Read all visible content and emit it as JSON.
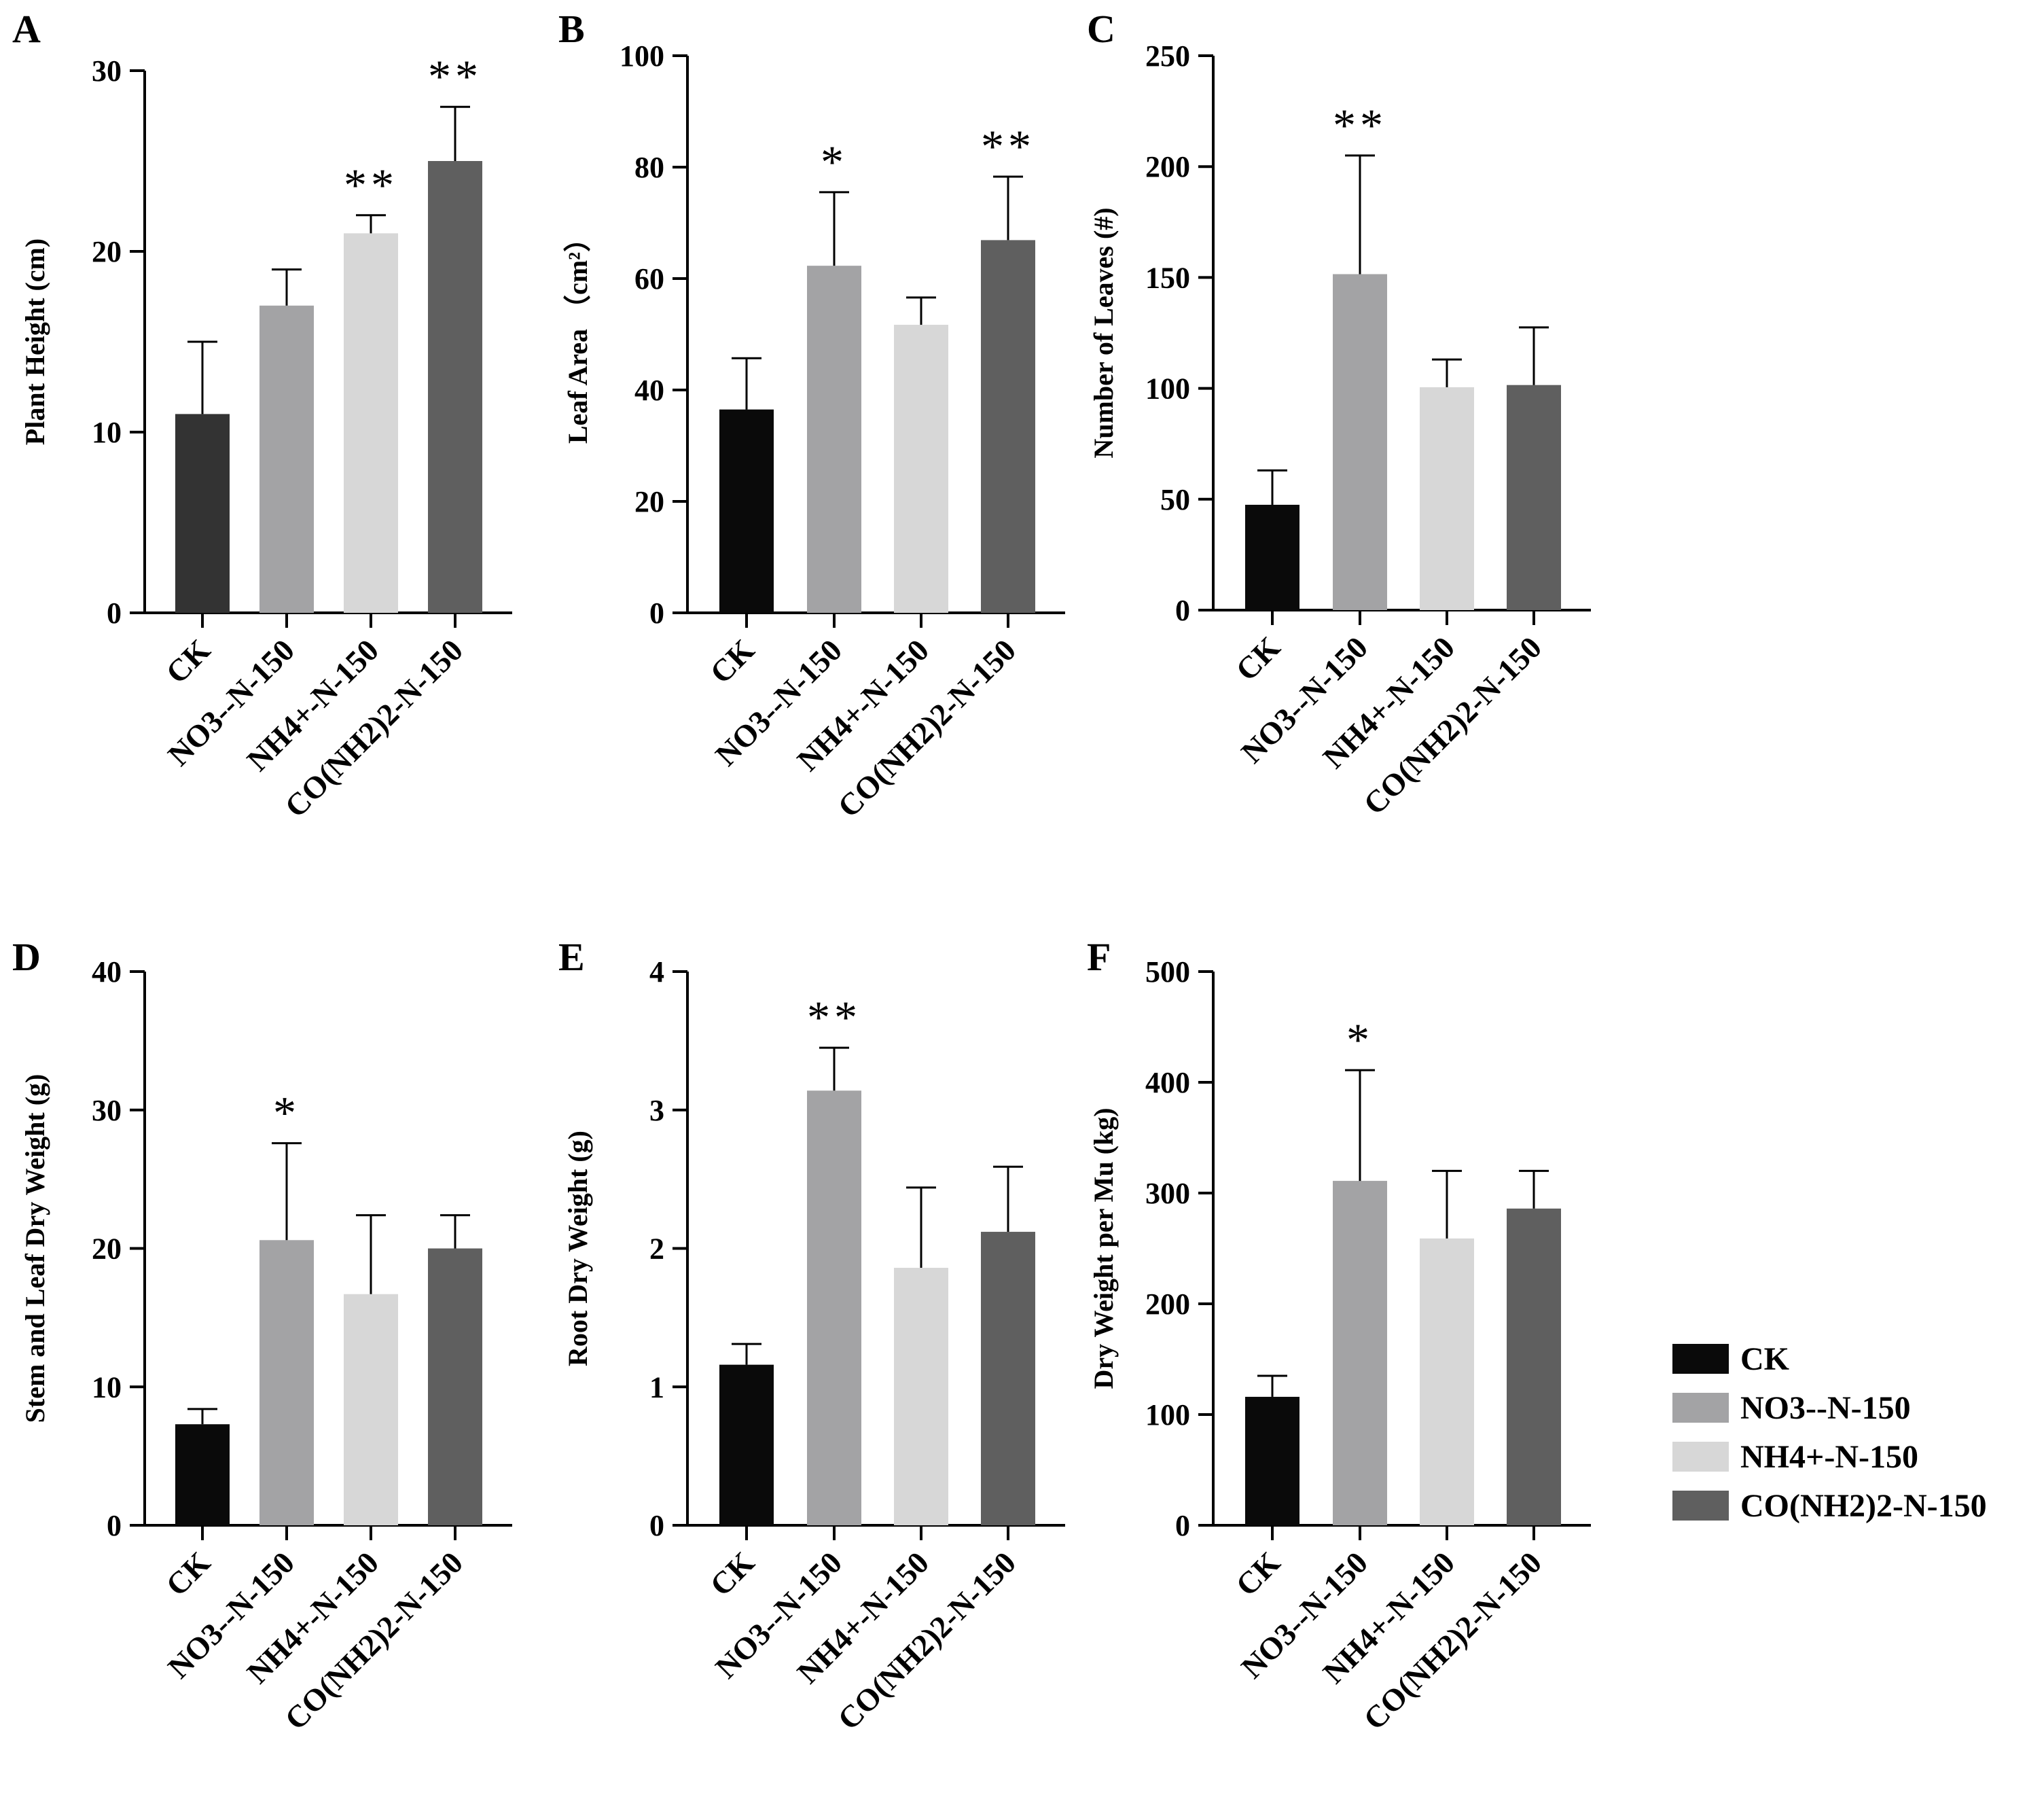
{
  "legend": [
    {
      "label": "CK",
      "color": "#0a0a0a"
    },
    {
      "label": "NO3--N-150",
      "color": "#a3a3a5"
    },
    {
      "label": "NH4+-N-150",
      "color": "#d7d7d7"
    },
    {
      "label": "CO(NH2)2-N-150",
      "color": "#5f5f5f"
    }
  ],
  "chart_data": [
    {
      "panel": "A",
      "type": "bar",
      "ylabel": "Plant Height (cm)",
      "categories": [
        "CK",
        "NO3--N-150",
        "NH4+-N-150",
        "CO(NH2)2-N-150"
      ],
      "colors": [
        "#333333",
        "#a3a3a5",
        "#d7d7d7",
        "#5f5f5f"
      ],
      "values": [
        11,
        17,
        21,
        25
      ],
      "errors": [
        4,
        2,
        1,
        3
      ],
      "significance": [
        "",
        "",
        "**",
        "**"
      ],
      "ylim": [
        0,
        30
      ],
      "yticks": [
        0,
        10,
        20,
        30
      ]
    },
    {
      "panel": "B",
      "type": "bar",
      "ylabel": "Leaf Area （cm²）",
      "categories": [
        "CK",
        "NO3--N-150",
        "NH4+-N-150",
        "CO(NH2)2-N-150"
      ],
      "colors": [
        "#0a0a0a",
        "#a3a3a5",
        "#d7d7d7",
        "#5f5f5f"
      ],
      "values": [
        36.5,
        62.3,
        51.7,
        66.9
      ],
      "errors": [
        9.2,
        13.2,
        4.9,
        11.4
      ],
      "significance": [
        "",
        "*",
        "",
        "**"
      ],
      "ylim": [
        0,
        100
      ],
      "yticks": [
        0,
        20,
        40,
        60,
        80,
        100
      ]
    },
    {
      "panel": "C",
      "type": "bar",
      "ylabel": "Number of Leaves (#)",
      "categories": [
        "CK",
        "NO3--N-150",
        "NH4+-N-150",
        "CO(NH2)2-N-150"
      ],
      "colors": [
        "#0a0a0a",
        "#a3a3a5",
        "#d7d7d7",
        "#5f5f5f"
      ],
      "values": [
        47.5,
        151.5,
        100.5,
        101.5
      ],
      "errors": [
        15.5,
        53.5,
        12.5,
        26
      ],
      "significance": [
        "",
        "**",
        "",
        ""
      ],
      "ylim": [
        0,
        250
      ],
      "yticks": [
        0,
        50,
        100,
        150,
        200,
        250
      ]
    },
    {
      "panel": "D",
      "type": "bar",
      "ylabel": "Stem and Leaf Dry Weight (g)",
      "categories": [
        "CK",
        "NO3--N-150",
        "NH4+-N-150",
        "CO(NH2)2-N-150"
      ],
      "colors": [
        "#0a0a0a",
        "#a3a3a5",
        "#d7d7d7",
        "#5f5f5f"
      ],
      "values": [
        7.3,
        20.6,
        16.7,
        20.0
      ],
      "errors": [
        1.1,
        7.0,
        5.7,
        2.4
      ],
      "significance": [
        "",
        "*",
        "",
        ""
      ],
      "ylim": [
        0,
        40
      ],
      "yticks": [
        0,
        10,
        20,
        30,
        40
      ]
    },
    {
      "panel": "E",
      "type": "bar",
      "ylabel": "Root Dry Weight (g)",
      "categories": [
        "CK",
        "NO3--N-150",
        "NH4+-N-150",
        "CO(NH2)2-N-150"
      ],
      "colors": [
        "#0a0a0a",
        "#a3a3a5",
        "#d7d7d7",
        "#5f5f5f"
      ],
      "values": [
        1.16,
        3.14,
        1.86,
        2.12
      ],
      "errors": [
        0.15,
        0.31,
        0.58,
        0.47
      ],
      "significance": [
        "",
        "**",
        "",
        ""
      ],
      "ylim": [
        0,
        4
      ],
      "yticks": [
        0,
        1,
        2,
        3,
        4
      ]
    },
    {
      "panel": "F",
      "type": "bar",
      "ylabel": "Dry Weight per Mu (kg)",
      "categories": [
        "CK",
        "NO3--N-150",
        "NH4+-N-150",
        "CO(NH2)2-N-150"
      ],
      "colors": [
        "#0a0a0a",
        "#a3a3a5",
        "#d7d7d7",
        "#5f5f5f"
      ],
      "values": [
        116,
        311,
        259,
        286
      ],
      "errors": [
        19,
        100,
        61,
        34
      ],
      "significance": [
        "",
        "*",
        "",
        ""
      ],
      "ylim": [
        0,
        500
      ],
      "yticks": [
        0,
        100,
        200,
        300,
        400,
        500
      ]
    }
  ]
}
